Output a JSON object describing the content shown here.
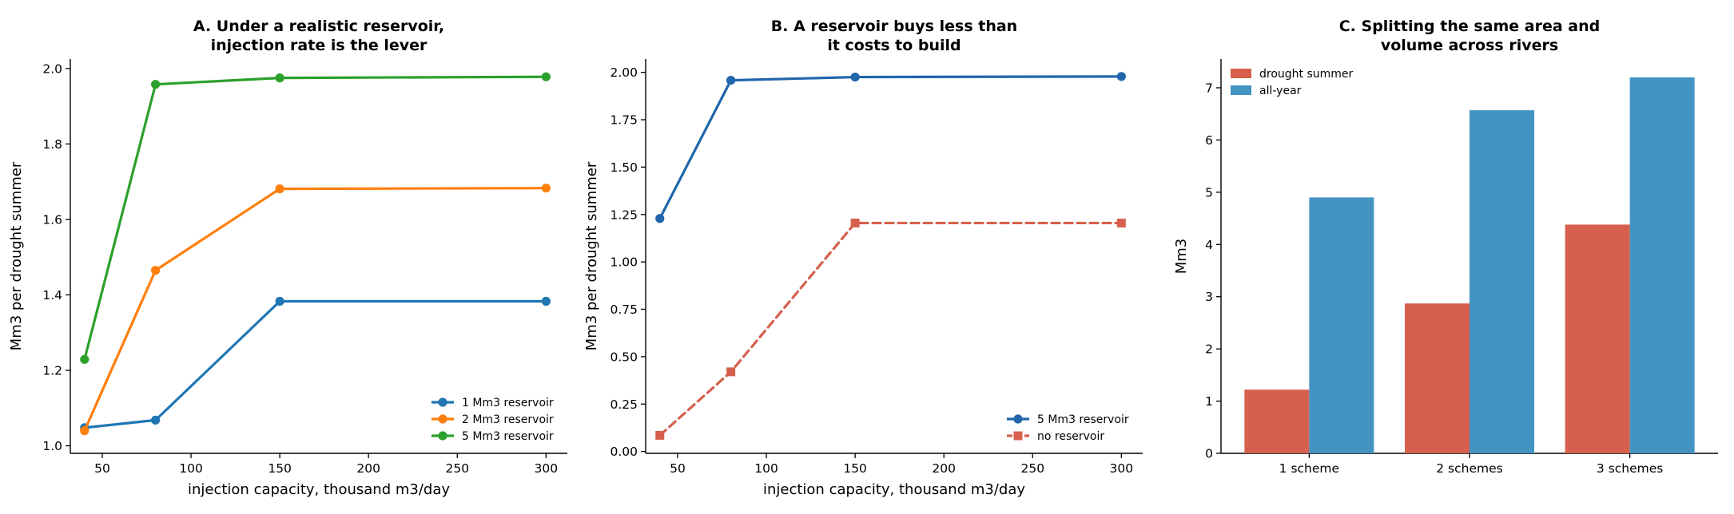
{
  "chart_data": [
    {
      "type": "line",
      "title": [
        "A. Under a realistic reservoir,",
        "injection rate is the lever"
      ],
      "xlabel": "injection capacity, thousand m3/day",
      "ylabel": "Mm3 per drought summer",
      "xlim": [
        32,
        312
      ],
      "ylim": [
        0.98,
        2.025
      ],
      "xticks": [
        50,
        100,
        150,
        200,
        250,
        300
      ],
      "xtick_labels": [
        "50",
        "100",
        "150",
        "200",
        "250",
        "300"
      ],
      "yticks": [
        1.0,
        1.2,
        1.4,
        1.6,
        1.8,
        2.0
      ],
      "ytick_labels": [
        "1.0",
        "1.2",
        "1.4",
        "1.6",
        "1.8",
        "2.0"
      ],
      "x": [
        40,
        80,
        150,
        300
      ],
      "legend_position": "lower-right",
      "series": [
        {
          "name": "1 Mm3 reservoir",
          "values": [
            1.048,
            1.068,
            1.383,
            1.383
          ],
          "color": "#1f77b4",
          "marker": "circle",
          "dashed": false
        },
        {
          "name": "2 Mm3 reservoir",
          "values": [
            1.04,
            1.465,
            1.681,
            1.683
          ],
          "color": "#ff7f0e",
          "marker": "circle",
          "dashed": false
        },
        {
          "name": "5 Mm3 reservoir",
          "values": [
            1.229,
            1.958,
            1.975,
            1.978
          ],
          "color": "#2ca02c",
          "marker": "circle",
          "dashed": false
        }
      ]
    },
    {
      "type": "line",
      "title": [
        "B. A reservoir buys less than",
        "it costs to build"
      ],
      "xlabel": "injection capacity, thousand m3/day",
      "ylabel": "Mm3 per drought summer",
      "xlim": [
        32,
        312
      ],
      "ylim": [
        -0.01,
        2.07
      ],
      "xticks": [
        50,
        100,
        150,
        200,
        250,
        300
      ],
      "xtick_labels": [
        "50",
        "100",
        "150",
        "200",
        "250",
        "300"
      ],
      "yticks": [
        0.0,
        0.25,
        0.5,
        0.75,
        1.0,
        1.25,
        1.5,
        1.75,
        2.0
      ],
      "ytick_labels": [
        "0.00",
        "0.25",
        "0.50",
        "0.75",
        "1.00",
        "1.25",
        "1.50",
        "1.75",
        "2.00"
      ],
      "x": [
        40,
        80,
        150,
        300
      ],
      "legend_position": "lower-right",
      "series": [
        {
          "name": "5 Mm3 reservoir",
          "values": [
            1.229,
            1.958,
            1.975,
            1.978
          ],
          "color": "#2166ac",
          "marker": "circle",
          "dashed": false
        },
        {
          "name": "no reservoir",
          "values": [
            0.085,
            0.42,
            1.205,
            1.205
          ],
          "color": "#d6604d",
          "marker": "square",
          "dashed": true
        }
      ]
    },
    {
      "type": "bar",
      "title": [
        "C. Splitting the same area and",
        "volume across rivers"
      ],
      "xlabel": "",
      "ylabel": "Mm3",
      "ylim": [
        0,
        7.55
      ],
      "yticks": [
        0,
        1,
        2,
        3,
        4,
        5,
        6,
        7
      ],
      "ytick_labels": [
        "0",
        "1",
        "2",
        "3",
        "4",
        "5",
        "6",
        "7"
      ],
      "categories": [
        "1 scheme",
        "2 schemes",
        "3 schemes"
      ],
      "legend_position": "top-left",
      "series": [
        {
          "name": "drought summer",
          "values": [
            1.22,
            2.87,
            4.38
          ],
          "color": "#d6604d"
        },
        {
          "name": "all-year",
          "values": [
            4.9,
            6.57,
            7.2
          ],
          "color": "#4393c3"
        }
      ]
    }
  ]
}
